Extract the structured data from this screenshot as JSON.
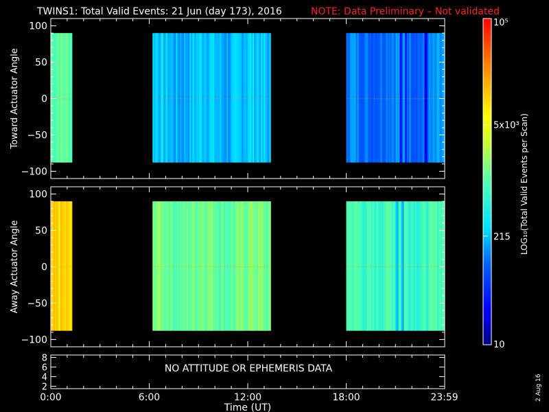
{
  "title": "TWINS1: Total Valid Events: 21 Jun (day 173), 2016",
  "note": "NOTE: Data Preliminary – Not validated",
  "stamp": "2 Aug 16",
  "no_data_text": "NO ATTITUDE OR EPHEMERIS DATA",
  "colors": {
    "note": "#ff2020",
    "text": "#ffffff",
    "background": "#000000"
  },
  "chart_data": [
    {
      "type": "heatmap",
      "ylabel": "Toward Actuator Angle",
      "xlim": [
        0,
        24
      ],
      "ylim": [
        -110,
        110
      ],
      "yticks": [
        100,
        50,
        0,
        -50,
        -100
      ],
      "ytick_labels": [
        "100",
        "50",
        "0",
        "−50",
        "−100"
      ],
      "data_y_range": [
        -88,
        90
      ],
      "segments": [
        {
          "start": 0.0,
          "end": 1.3,
          "level": 0.5
        },
        {
          "start": 6.2,
          "end": 13.4,
          "level": 0.33
        },
        {
          "start": 18.0,
          "end": 24.0,
          "level": 0.27
        }
      ],
      "dropouts": [
        21.3,
        21.6,
        22.8
      ]
    },
    {
      "type": "heatmap",
      "ylabel": "Away Actuator Angle",
      "xlim": [
        0,
        24
      ],
      "ylim": [
        -110,
        110
      ],
      "yticks": [
        100,
        50,
        0,
        -50,
        -100
      ],
      "ytick_labels": [
        "100",
        "50",
        "0",
        "−50",
        "−100"
      ],
      "data_y_range": [
        -88,
        90
      ],
      "segments": [
        {
          "start": 0.0,
          "end": 1.3,
          "level": 0.73
        },
        {
          "start": 6.2,
          "end": 13.4,
          "level": 0.53
        },
        {
          "start": 18.0,
          "end": 24.0,
          "level": 0.48
        }
      ],
      "dropouts": [
        21.05,
        21.4
      ]
    },
    {
      "type": "line",
      "xlabel": "Time (UT)",
      "xlim": [
        0,
        24
      ],
      "ylim": [
        1.5,
        8.5
      ],
      "yticks": [
        8,
        6,
        4,
        2
      ],
      "ytick_labels": [
        "8",
        "6",
        "4",
        "2"
      ],
      "xticks": [
        0,
        6,
        12,
        18,
        23.98
      ],
      "xtick_labels": [
        "0:00",
        "6:00",
        "12:00",
        "18:00",
        "23:59"
      ]
    }
  ],
  "colorbar": {
    "label": "LOG₁₀(Total Valid Events per Scan)",
    "range": [
      10,
      100000
    ],
    "ticks": [
      {
        "value": 100000,
        "label": "10⁵"
      },
      {
        "value": 5000,
        "label": "5x10³"
      },
      {
        "value": 215,
        "label": "215"
      },
      {
        "value": 10,
        "label": "10"
      }
    ]
  }
}
